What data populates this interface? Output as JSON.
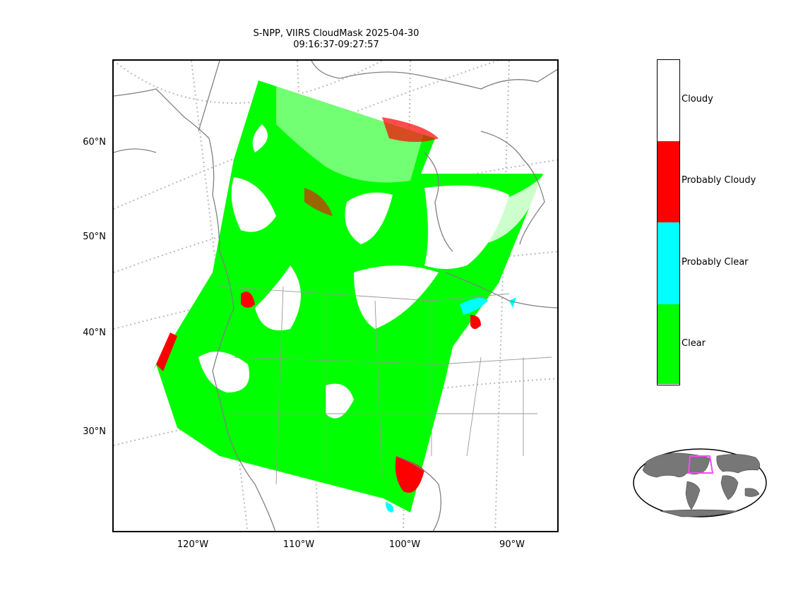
{
  "title": {
    "line1": "S-NPP, VIIRS CloudMask 2025-04-30",
    "line2": "09:16:37-09:27:57"
  },
  "lat_labels": [
    "60°N",
    "50°N",
    "40°N",
    "30°N"
  ],
  "lon_labels": [
    "120°W",
    "110°W",
    "100°W",
    "90°W"
  ],
  "colorbar": {
    "categories": [
      {
        "label": "Cloudy",
        "color": "#ffffff"
      },
      {
        "label": "Probably Cloudy",
        "color": "#ff0000"
      },
      {
        "label": "Probably Clear",
        "color": "#00ffff"
      },
      {
        "label": "Clear",
        "color": "#00ff00"
      }
    ]
  },
  "colors": {
    "clear": "#00ff00",
    "probably_clear": "#00ffff",
    "probably_cloudy": "#ff0000",
    "cloudy": "#ffffff",
    "coastline": "#808080",
    "graticule": "#bbbbbb",
    "inset_land": "#777777",
    "inset_box": "#ff44ff"
  }
}
